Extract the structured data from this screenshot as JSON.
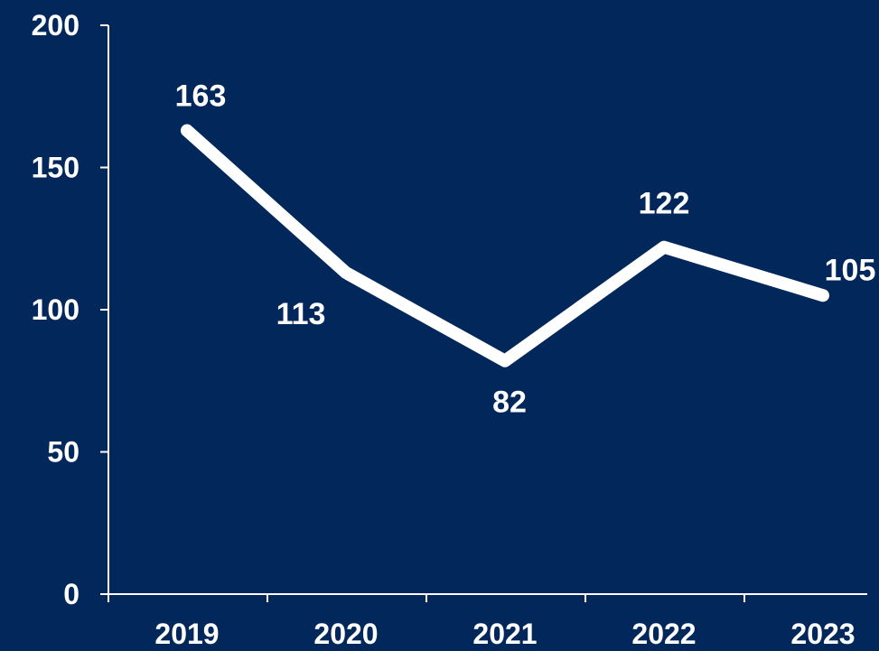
{
  "colors": {
    "background": "#02275a",
    "foreground": "#ffffff"
  },
  "chart_data": {
    "type": "line",
    "title": "",
    "xlabel": "",
    "ylabel": "",
    "categories": [
      "2019",
      "2020",
      "2021",
      "2022",
      "2023"
    ],
    "series": [
      {
        "values": [
          163,
          113,
          82,
          122,
          105
        ]
      }
    ],
    "data_labels": [
      "163",
      "113",
      "82",
      "122",
      "105"
    ],
    "ylim": [
      0,
      200
    ],
    "yticks": [
      0,
      50,
      100,
      150,
      200
    ],
    "ytick_labels": [
      "0",
      "50",
      "100",
      "150",
      "200"
    ],
    "grid": false,
    "legend": "none"
  }
}
